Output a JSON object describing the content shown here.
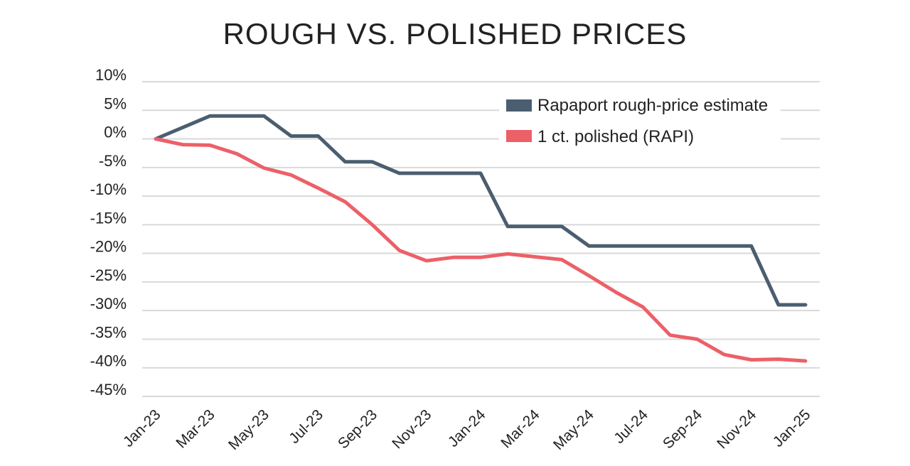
{
  "chart_data": {
    "type": "line",
    "title": "ROUGH VS. POLISHED PRICES",
    "xlabel": "",
    "ylabel": "",
    "ylim": [
      -45,
      10
    ],
    "y_ticks": [
      10,
      5,
      0,
      -5,
      -10,
      -15,
      -20,
      -25,
      -30,
      -35,
      -40,
      -45
    ],
    "y_tick_labels": [
      "10%",
      "5%",
      "0%",
      "-5%",
      "-10%",
      "-15%",
      "-20%",
      "-25%",
      "-30%",
      "-35%",
      "-40%",
      "-45%"
    ],
    "x": [
      "Jan-23",
      "Feb-23",
      "Mar-23",
      "Apr-23",
      "May-23",
      "Jun-23",
      "Jul-23",
      "Aug-23",
      "Sep-23",
      "Oct-23",
      "Nov-23",
      "Dec-23",
      "Jan-24",
      "Feb-24",
      "Mar-24",
      "Apr-24",
      "May-24",
      "Jun-24",
      "Jul-24",
      "Aug-24",
      "Sep-24",
      "Oct-24",
      "Nov-24",
      "Dec-24",
      "Jan-25"
    ],
    "x_tick_labels": [
      "Jan-23",
      "Mar-23",
      "May-23",
      "Jul-23",
      "Sep-23",
      "Nov-23",
      "Jan-24",
      "Mar-24",
      "May-24",
      "Jul-24",
      "Sep-24",
      "Nov-24",
      "Jan-25"
    ],
    "grid": true,
    "legend_position": "top-right",
    "series": [
      {
        "name": "Rapaport rough-price estimate",
        "color": "#4a5e70",
        "values": [
          0,
          2,
          4,
          4,
          4,
          0.5,
          0.5,
          -4,
          -4,
          -6,
          -6,
          -6,
          -6,
          -15.3,
          -15.3,
          -15.3,
          -18.7,
          -18.7,
          -18.7,
          -18.7,
          -18.7,
          -18.7,
          -18.7,
          -29,
          -29
        ]
      },
      {
        "name": "1 ct. polished (RAPI)",
        "color": "#ec6068",
        "values": [
          0,
          -1,
          -1.1,
          -2.6,
          -5.1,
          -6.3,
          -8.6,
          -11,
          -15,
          -19.5,
          -21.3,
          -20.7,
          -20.7,
          -20.1,
          -20.6,
          -21.1,
          -23.9,
          -26.8,
          -29.4,
          -34.3,
          -35,
          -37.7,
          -38.6,
          -38.5,
          -38.8
        ]
      }
    ]
  }
}
